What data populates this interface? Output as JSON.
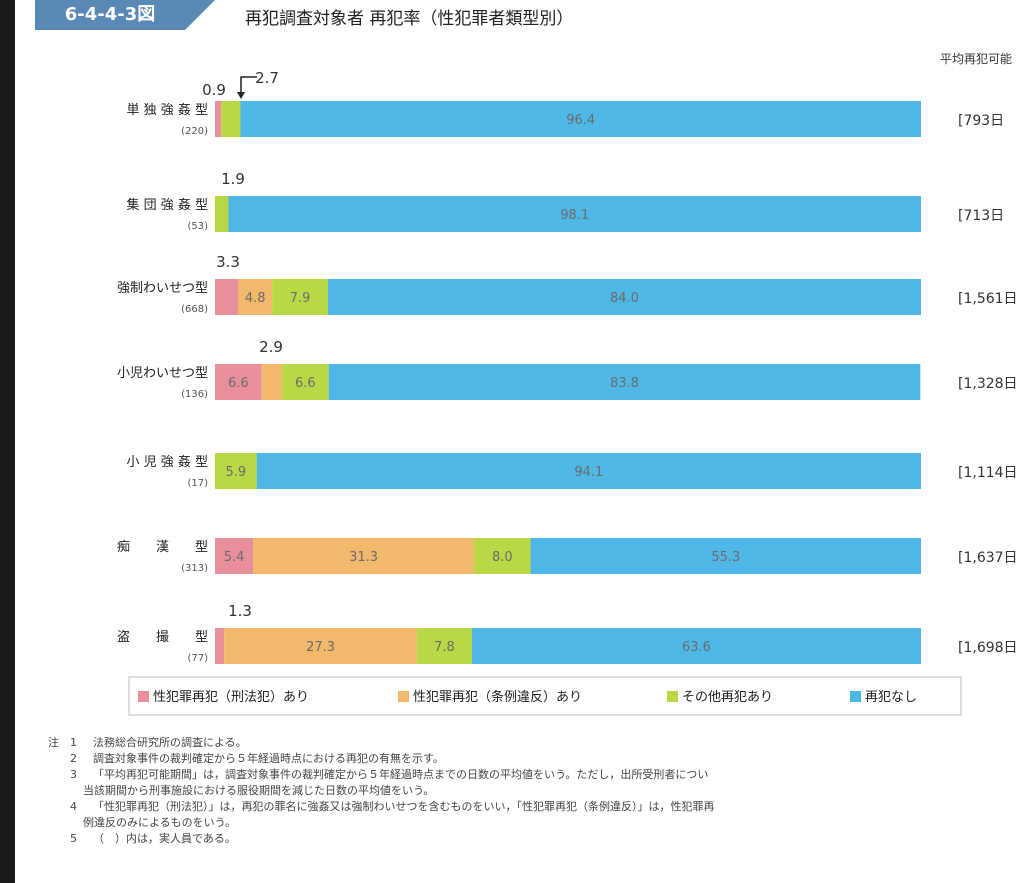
{
  "figure": {
    "number": "6-4-4-3図",
    "title": "再犯調査対象者 再犯率（性犯罪者類型別）",
    "right_header": "平均再犯可能"
  },
  "colors": {
    "sex_crime_penal": "#e88f9b",
    "sex_crime_ordinance": "#f2b86b",
    "other_recidivism": "#b8d845",
    "no_recidivism": "#4fb7e6",
    "header_band": "#5b89b5"
  },
  "chart_data": {
    "type": "bar",
    "orientation": "horizontal",
    "stacked": true,
    "percent": true,
    "categories": [
      {
        "label": "単 独 強 姦 型",
        "count": "(220)",
        "days": "[793日"
      },
      {
        "label": "集 団 強 姦 型",
        "count": "(53)",
        "days": "[713日"
      },
      {
        "label": "強制わいせつ型",
        "count": "(668)",
        "days": "[1,561日"
      },
      {
        "label": "小児わいせつ型",
        "count": "(136)",
        "days": "[1,328日"
      },
      {
        "label": "小 児 強 姦 型",
        "count": "(17)",
        "days": "[1,114日"
      },
      {
        "label": "痴　　漢　　型",
        "count": "(313)",
        "days": "[1,637日"
      },
      {
        "label": "盗　　撮　　型",
        "count": "(77)",
        "days": "[1,698日"
      }
    ],
    "series": [
      {
        "name": "性犯罪再犯（刑法犯）あり",
        "values": [
          0.9,
          0,
          3.3,
          6.6,
          0,
          5.4,
          1.3
        ]
      },
      {
        "name": "性犯罪再犯（条例違反）あり",
        "values": [
          0,
          0,
          4.8,
          2.9,
          0,
          31.3,
          27.3
        ]
      },
      {
        "name": "その他再犯あり",
        "values": [
          2.7,
          1.9,
          7.9,
          6.6,
          5.9,
          8.0,
          7.8
        ]
      },
      {
        "name": "再犯なし",
        "values": [
          96.4,
          98.1,
          84.0,
          83.8,
          94.1,
          55.3,
          63.6
        ]
      }
    ],
    "segment_labels": [
      [
        "",
        "",
        "",
        "96.4"
      ],
      [
        "",
        "",
        "",
        "98.1"
      ],
      [
        "",
        "4.8",
        "7.9",
        "84.0"
      ],
      [
        "6.6",
        "",
        "6.6",
        "83.8"
      ],
      [
        "",
        "",
        "5.9",
        "94.1"
      ],
      [
        "5.4",
        "31.3",
        "8.0",
        "55.3"
      ],
      [
        "",
        "27.3",
        "7.8",
        "63.6"
      ]
    ],
    "callouts": [
      {
        "row": 0,
        "texts": [
          "0.9",
          "2.7"
        ]
      },
      {
        "row": 1,
        "texts": [
          "1.9"
        ]
      },
      {
        "row": 2,
        "texts": [
          "3.3"
        ]
      },
      {
        "row": 3,
        "texts": [
          "2.9"
        ]
      },
      {
        "row": 6,
        "texts": [
          "1.3"
        ]
      }
    ],
    "xlim": [
      0,
      100
    ],
    "legend_position": "bottom"
  },
  "notes": [
    {
      "num": "注　1",
      "text": "法務総合研究所の調査による。"
    },
    {
      "num": "2",
      "text": "調査対象事件の裁判確定から５年経過時点における再犯の有無を示す。"
    },
    {
      "num": "3",
      "text": "「平均再犯可能期間」は，調査対象事件の裁判確定から５年経過時点までの日数の平均値をいう。ただし，出所受刑者につい"
    },
    {
      "num": "",
      "text": "当該期間から刑事施設における服役期間を減じた日数の平均値をいう。"
    },
    {
      "num": "4",
      "text": "「性犯罪再犯（刑法犯）」は，再犯の罪名に強姦又は強制わいせつを含むものをいい，「性犯罪再犯（条例違反）」は，性犯罪再"
    },
    {
      "num": "",
      "text": "例違反のみによるものをいう。"
    },
    {
      "num": "5",
      "text": "（　）内は，実人員である。"
    }
  ]
}
